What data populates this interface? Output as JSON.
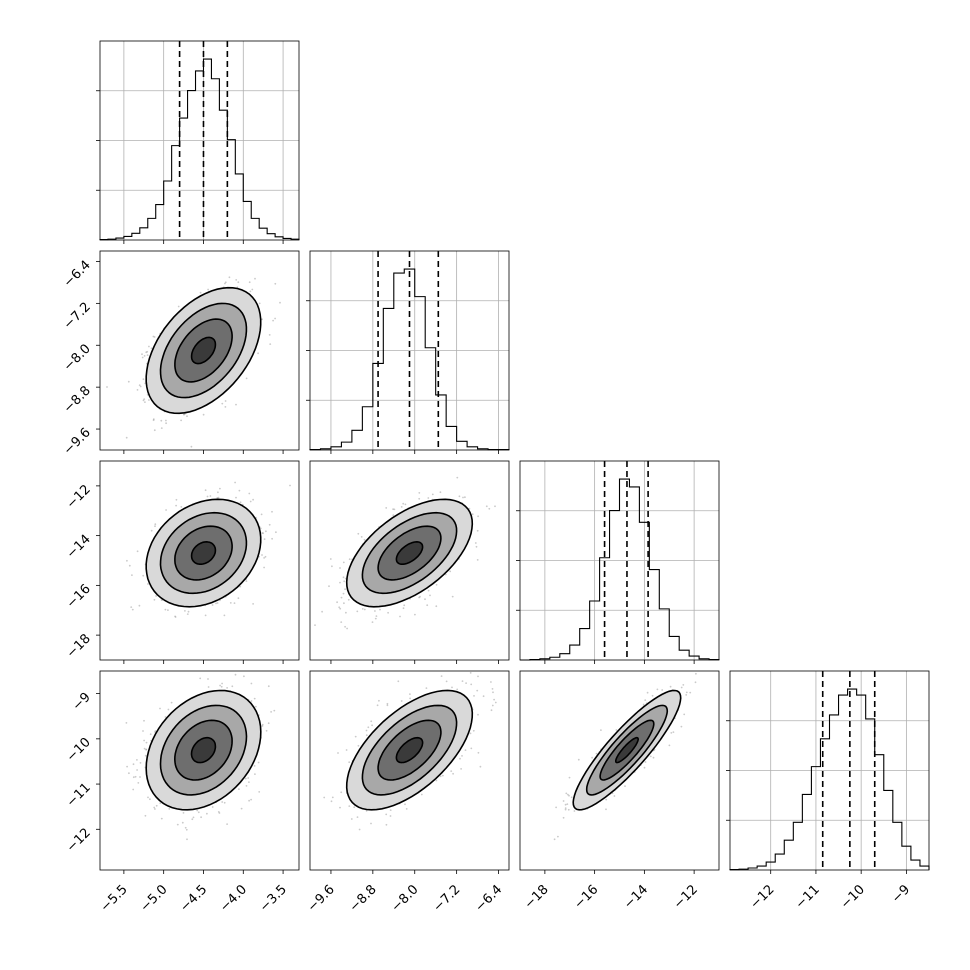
{
  "chart_data": {
    "type": "corner",
    "dimensions": [
      {
        "range": [
          -5.8,
          -3.3
        ],
        "ticks": [
          -5.5,
          -5.0,
          -4.5,
          -4.0,
          -3.5
        ],
        "tick_labels": [
          "−5.5",
          "−5.0",
          "−4.5",
          "−4.0",
          "−3.5"
        ],
        "marginal": {
          "bin_edges": [
            -5.8,
            -5.7,
            -5.6,
            -5.5,
            -5.4,
            -5.3,
            -5.2,
            -5.1,
            -5.0,
            -4.9,
            -4.8,
            -4.7,
            -4.6,
            -4.5,
            -4.4,
            -4.3,
            -4.2,
            -4.1,
            -4.0,
            -3.9,
            -3.8,
            -3.7,
            -3.6,
            -3.5,
            -3.4,
            -3.3
          ],
          "counts": [
            1,
            2,
            5,
            9,
            17,
            31,
            55,
            90,
            150,
            240,
            310,
            380,
            430,
            460,
            410,
            330,
            255,
            168,
            98,
            55,
            30,
            16,
            8,
            4,
            2
          ],
          "quantiles": [
            -4.8,
            -4.5,
            -4.2
          ]
        },
        "mean": -4.5,
        "sd": 0.3
      },
      {
        "range": [
          -10.0,
          -6.2
        ],
        "ticks": [
          -9.6,
          -8.8,
          -8.0,
          -7.2,
          -6.4
        ],
        "tick_labels": [
          "−9.6",
          "−8.8",
          "−8.0",
          "−7.2",
          "−6.4"
        ],
        "marginal": {
          "bin_edges": [
            -10.0,
            -9.8,
            -9.6,
            -9.4,
            -9.2,
            -9.0,
            -8.8,
            -8.6,
            -8.4,
            -8.2,
            -8.0,
            -7.8,
            -7.6,
            -7.4,
            -7.2,
            -7.0,
            -6.8,
            -6.6,
            -6.4,
            -6.2
          ],
          "counts": [
            1,
            3,
            8,
            20,
            50,
            110,
            220,
            360,
            450,
            460,
            390,
            260,
            140,
            60,
            22,
            8,
            3,
            1,
            1
          ],
          "quantiles": [
            -8.7,
            -8.1,
            -7.55
          ]
        },
        "mean": -8.1,
        "sd": 0.5
      },
      {
        "range": [
          -19.0,
          -11.0
        ],
        "ticks": [
          -18,
          -16,
          -14,
          -12
        ],
        "tick_labels": [
          "−18",
          "−16",
          "−14",
          "−12"
        ],
        "marginal": {
          "bin_edges": [
            -19.0,
            -18.6,
            -18.2,
            -17.8,
            -17.4,
            -17.0,
            -16.6,
            -16.2,
            -15.8,
            -15.4,
            -15.0,
            -14.6,
            -14.2,
            -13.8,
            -13.4,
            -13.0,
            -12.6,
            -12.2,
            -11.8,
            -11.4,
            -11.0
          ],
          "counts": [
            0,
            1,
            3,
            7,
            16,
            38,
            80,
            150,
            260,
            380,
            460,
            440,
            350,
            230,
            130,
            60,
            25,
            10,
            3,
            1
          ],
          "quantiles": [
            -15.6,
            -14.7,
            -13.85
          ]
        },
        "mean": -14.7,
        "sd": 0.9
      },
      {
        "range": [
          -12.9,
          -8.5
        ],
        "ticks": [
          -12,
          -11,
          -10,
          -9
        ],
        "tick_labels": [
          "−12",
          "−11",
          "−10",
          "−9"
        ],
        "marginal": {
          "bin_edges": [
            -12.9,
            -12.7,
            -12.5,
            -12.3,
            -12.1,
            -11.9,
            -11.7,
            -11.5,
            -11.3,
            -11.1,
            -10.9,
            -10.7,
            -10.5,
            -10.3,
            -10.1,
            -9.9,
            -9.7,
            -9.5,
            -9.3,
            -9.1,
            -8.9,
            -8.7,
            -8.5
          ],
          "counts": [
            1,
            2,
            5,
            10,
            20,
            40,
            75,
            120,
            190,
            260,
            330,
            390,
            440,
            455,
            440,
            380,
            290,
            200,
            120,
            60,
            25,
            10
          ],
          "quantiles": [
            -10.85,
            -10.25,
            -9.7
          ]
        },
        "mean": -10.25,
        "sd": 0.55
      }
    ],
    "correlations": [
      [
        1.0,
        0.45,
        0.25,
        0.3
      ],
      [
        0.45,
        1.0,
        0.55,
        0.6
      ],
      [
        0.25,
        0.55,
        1.0,
        0.88
      ],
      [
        0.3,
        0.6,
        0.88,
        1.0
      ]
    ],
    "contour_levels": [
      0.5,
      1.2,
      1.8,
      2.4
    ],
    "quantile_levels": [
      0.16,
      0.5,
      0.84
    ],
    "grid": true,
    "colors": {
      "line": "#000000",
      "grid": "#b0b0b0",
      "points": "#9e9e9e"
    }
  }
}
